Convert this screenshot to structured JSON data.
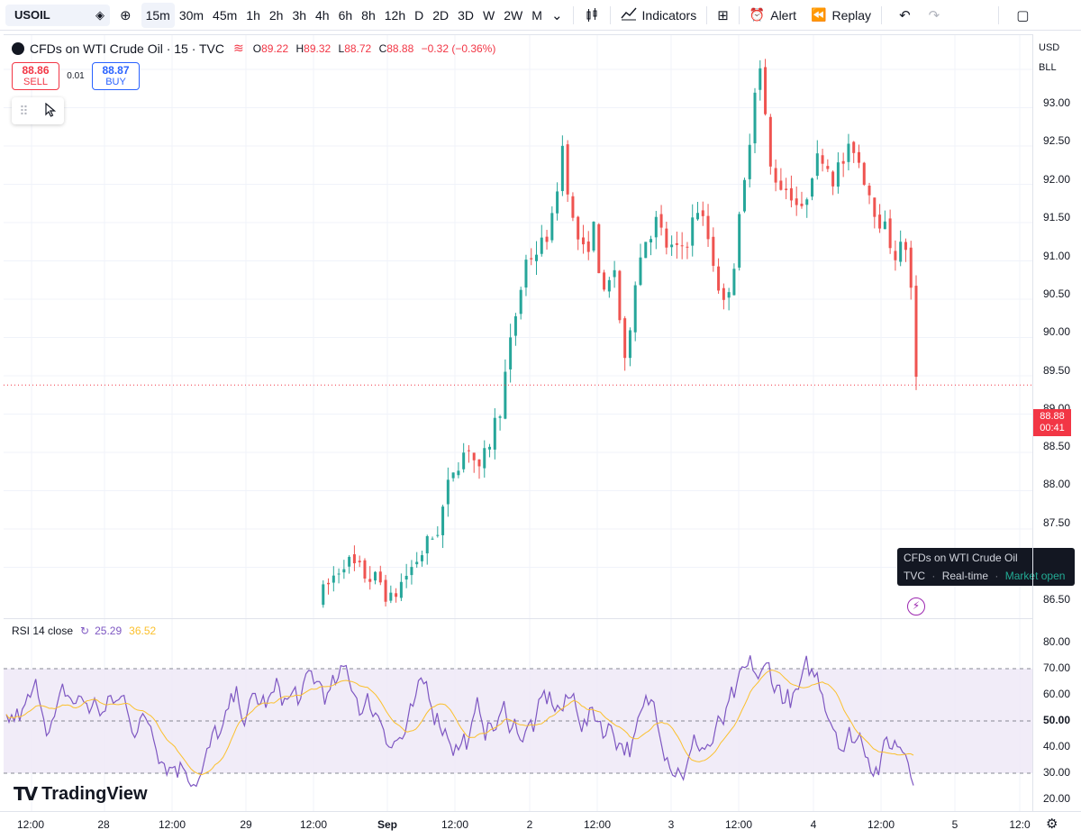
{
  "toolbar": {
    "symbol": "USOIL",
    "intervals": [
      {
        "label": "15m",
        "active": true
      },
      {
        "label": "30m"
      },
      {
        "label": "45m"
      },
      {
        "label": "1h"
      },
      {
        "label": "2h"
      },
      {
        "label": "3h"
      },
      {
        "label": "4h"
      },
      {
        "label": "6h"
      },
      {
        "label": "8h"
      },
      {
        "label": "12h"
      },
      {
        "label": "D"
      },
      {
        "label": "2D"
      },
      {
        "label": "3D"
      },
      {
        "label": "W"
      },
      {
        "label": "2W"
      },
      {
        "label": "M"
      }
    ],
    "indicators_label": "Indicators",
    "alert_label": "Alert",
    "replay_label": "Replay"
  },
  "legend": {
    "title": "CFDs on WTI Crude Oil · 15 · TVC",
    "open_label": "O",
    "open": "89.22",
    "high_label": "H",
    "high": "89.32",
    "low_label": "L",
    "low": "88.72",
    "close_label": "C",
    "close": "88.88",
    "change": "−0.32 (−0.36%)"
  },
  "trade": {
    "sell_price": "88.86",
    "sell_label": "SELL",
    "spread": "0.01",
    "buy_price": "88.87",
    "buy_label": "BUY"
  },
  "tooltip": {
    "title": "CFDs on WTI Crude Oil",
    "exchange": "TVC",
    "sep": "·",
    "mode": "Real-time",
    "status": "Market open"
  },
  "rsi": {
    "label": "RSI 14 close",
    "value": "25.29",
    "ma_value": "36.52",
    "levels": [
      70,
      50,
      30
    ],
    "axis_labels": [
      "80.00",
      "70.00",
      "60.00",
      "50.00",
      "40.00",
      "30.00",
      "20.00"
    ]
  },
  "brand": "TradingView",
  "price_axis": {
    "currency": "USD",
    "unit": "BLL",
    "labels": [
      "93.00",
      "92.50",
      "92.00",
      "91.50",
      "91.00",
      "90.50",
      "90.00",
      "89.50",
      "89.00",
      "88.50",
      "88.00",
      "87.50",
      "86.50"
    ],
    "last_price": "88.88",
    "countdown": "00:41"
  },
  "time_axis": {
    "labels": [
      {
        "text": "12:00"
      },
      {
        "text": "28"
      },
      {
        "text": "12:00"
      },
      {
        "text": "29"
      },
      {
        "text": "12:00"
      },
      {
        "text": "Sep",
        "bold": true
      },
      {
        "text": "12:00"
      },
      {
        "text": "2"
      },
      {
        "text": "12:00"
      },
      {
        "text": "3"
      },
      {
        "text": "12:00"
      },
      {
        "text": "4"
      },
      {
        "text": "12:00"
      },
      {
        "text": "5"
      },
      {
        "text": "12:0"
      }
    ]
  },
  "colors": {
    "up": "#26a69a",
    "down": "#ef5350",
    "rsi_line": "#7e57c2",
    "rsi_ma": "#fbc02d",
    "rsi_band": "#ede7f6",
    "price_tag": "#f23645"
  },
  "chart_data": {
    "type": "candlestick",
    "ylim": [
      86.2,
      93.3
    ],
    "anchors": [
      [
        0,
        86.05
      ],
      [
        5,
        86.6
      ],
      [
        9,
        86.4
      ],
      [
        12,
        86.3
      ],
      [
        14,
        86.05
      ],
      [
        16,
        86.3
      ],
      [
        20,
        86.7
      ],
      [
        23,
        87.0
      ],
      [
        26,
        87.8
      ],
      [
        29,
        88.1
      ],
      [
        31,
        87.7
      ],
      [
        35,
        88.6
      ],
      [
        38,
        89.8
      ],
      [
        40,
        90.5
      ],
      [
        43,
        90.7
      ],
      [
        45,
        91.0
      ],
      [
        47,
        92.0
      ],
      [
        49,
        91.0
      ],
      [
        51,
        90.6
      ],
      [
        53,
        90.9
      ],
      [
        55,
        90.0
      ],
      [
        57,
        90.4
      ],
      [
        59,
        89.1
      ],
      [
        61,
        90.3
      ],
      [
        63,
        90.8
      ],
      [
        65,
        91.0
      ],
      [
        67,
        90.7
      ],
      [
        69,
        90.6
      ],
      [
        71,
        90.8
      ],
      [
        73,
        91.2
      ],
      [
        75,
        90.8
      ],
      [
        77,
        90.2
      ],
      [
        78,
        89.9
      ],
      [
        80,
        90.5
      ],
      [
        82,
        91.5
      ],
      [
        84,
        92.8
      ],
      [
        85,
        93.0
      ],
      [
        87,
        91.7
      ],
      [
        89,
        91.5
      ],
      [
        91,
        91.4
      ],
      [
        93,
        91.1
      ],
      [
        95,
        91.7
      ],
      [
        97,
        91.9
      ],
      [
        99,
        91.6
      ],
      [
        101,
        91.8
      ],
      [
        103,
        92.0
      ],
      [
        105,
        91.6
      ],
      [
        107,
        91.2
      ],
      [
        109,
        90.9
      ],
      [
        111,
        90.6
      ],
      [
        113,
        90.7
      ],
      [
        114,
        90.1
      ],
      [
        115,
        88.9
      ]
    ]
  }
}
